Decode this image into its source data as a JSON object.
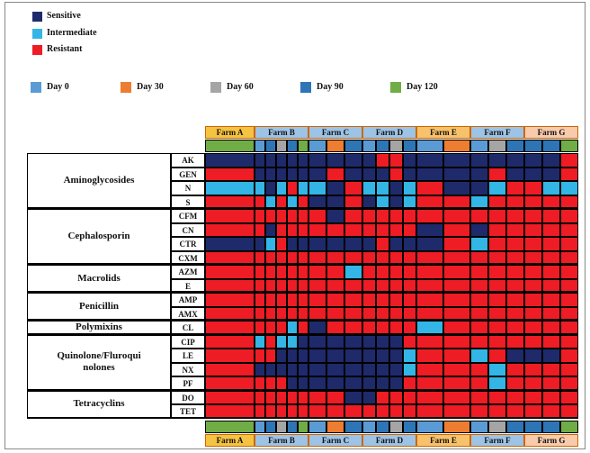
{
  "statuses": [
    {
      "label": "Sensitive",
      "color": "#1f2a6b"
    },
    {
      "label": "Intermediate",
      "color": "#33b5e5"
    },
    {
      "label": "Resistant",
      "color": "#ee1c24"
    }
  ],
  "days": [
    {
      "label": "Day 0",
      "color": "#5b9bd5"
    },
    {
      "label": "Day 30",
      "color": "#ed7d31"
    },
    {
      "label": "Day 60",
      "color": "#a5a5a5"
    },
    {
      "label": "Day 90",
      "color": "#2e75b6"
    },
    {
      "label": "Day 120",
      "color": "#70ad47"
    }
  ],
  "farms": [
    {
      "name": "Farm A",
      "color": "#f5c342",
      "days": [
        4
      ]
    },
    {
      "name": "Farm B",
      "color": "#9dc3e6",
      "days": [
        0,
        3,
        2,
        3,
        4
      ]
    },
    {
      "name": "Farm C",
      "color": "#9dc3e6",
      "days": [
        0,
        1,
        3
      ]
    },
    {
      "name": "Farm D",
      "color": "#9dc3e6",
      "days": [
        0,
        3,
        2,
        3
      ]
    },
    {
      "name": "Farm E",
      "color": "#f7c26b",
      "days": [
        0,
        1
      ]
    },
    {
      "name": "Farm F",
      "color": "#9dc3e6",
      "days": [
        0,
        2,
        3
      ]
    },
    {
      "name": "Farm G",
      "color": "#f8cbad",
      "days": [
        3,
        3,
        4
      ]
    }
  ],
  "groups": [
    {
      "name": "Aminoglycosides",
      "drugs": [
        {
          "name": "AK",
          "cells": [
            0,
            0,
            0,
            0,
            0,
            0,
            0,
            0,
            0,
            0,
            2,
            2,
            0,
            0,
            0,
            0,
            0,
            0,
            0,
            0,
            2
          ]
        },
        {
          "name": "GEN",
          "cells": [
            2,
            0,
            0,
            0,
            0,
            0,
            0,
            2,
            0,
            0,
            0,
            2,
            0,
            0,
            0,
            0,
            2,
            0,
            0,
            0,
            2
          ]
        },
        {
          "name": "N",
          "cells": [
            1,
            1,
            0,
            1,
            2,
            1,
            1,
            0,
            2,
            1,
            1,
            0,
            1,
            2,
            0,
            0,
            1,
            2,
            2,
            1,
            1
          ]
        },
        {
          "name": "S",
          "cells": [
            2,
            2,
            1,
            2,
            1,
            2,
            0,
            0,
            2,
            0,
            1,
            0,
            1,
            2,
            2,
            1,
            2,
            2,
            2,
            2,
            2
          ]
        }
      ]
    },
    {
      "name": "Cephalosporin",
      "drugs": [
        {
          "name": "CFM",
          "cells": [
            2,
            2,
            2,
            2,
            2,
            2,
            2,
            0,
            2,
            2,
            2,
            2,
            2,
            2,
            2,
            2,
            2,
            2,
            2,
            2,
            2
          ]
        },
        {
          "name": "CN",
          "cells": [
            2,
            2,
            0,
            2,
            2,
            2,
            2,
            2,
            2,
            2,
            2,
            2,
            2,
            0,
            2,
            0,
            2,
            2,
            2,
            2,
            2
          ]
        },
        {
          "name": "CTR",
          "cells": [
            0,
            0,
            1,
            2,
            0,
            0,
            0,
            0,
            0,
            0,
            2,
            0,
            0,
            0,
            2,
            1,
            2,
            2,
            2,
            2,
            2
          ]
        },
        {
          "name": "CXM",
          "cells": [
            2,
            2,
            2,
            2,
            2,
            2,
            2,
            2,
            2,
            2,
            2,
            2,
            2,
            2,
            2,
            2,
            2,
            2,
            2,
            2,
            2
          ]
        }
      ]
    },
    {
      "name": "Macrolids",
      "drugs": [
        {
          "name": "AZM",
          "cells": [
            2,
            2,
            2,
            2,
            2,
            2,
            2,
            2,
            1,
            2,
            2,
            2,
            2,
            2,
            2,
            2,
            2,
            2,
            2,
            2,
            2
          ]
        },
        {
          "name": "E",
          "cells": [
            2,
            2,
            2,
            2,
            2,
            2,
            2,
            2,
            2,
            2,
            2,
            2,
            2,
            2,
            2,
            2,
            2,
            2,
            2,
            2,
            2
          ]
        }
      ]
    },
    {
      "name": "Penicillin",
      "drugs": [
        {
          "name": "AMP",
          "cells": [
            2,
            2,
            2,
            2,
            2,
            2,
            2,
            2,
            2,
            2,
            2,
            2,
            2,
            2,
            2,
            2,
            2,
            2,
            2,
            2,
            2
          ]
        },
        {
          "name": "AMX",
          "cells": [
            2,
            2,
            2,
            2,
            2,
            2,
            2,
            2,
            2,
            2,
            2,
            2,
            2,
            2,
            2,
            2,
            2,
            2,
            2,
            2,
            2
          ]
        }
      ]
    },
    {
      "name": "Polymixins",
      "drugs": [
        {
          "name": "CL",
          "cells": [
            2,
            2,
            2,
            2,
            1,
            2,
            0,
            2,
            2,
            2,
            2,
            2,
            2,
            1,
            2,
            2,
            2,
            2,
            2,
            2,
            2
          ]
        }
      ]
    },
    {
      "name": "Quinolone/Fluroqui\nnolones",
      "drugs": [
        {
          "name": "CIP",
          "cells": [
            2,
            1,
            2,
            1,
            1,
            0,
            0,
            0,
            0,
            0,
            0,
            0,
            2,
            2,
            2,
            2,
            2,
            2,
            2,
            2,
            2
          ]
        },
        {
          "name": "LE",
          "cells": [
            2,
            2,
            2,
            0,
            0,
            0,
            0,
            0,
            0,
            0,
            0,
            0,
            1,
            2,
            2,
            1,
            2,
            0,
            0,
            0,
            2
          ]
        },
        {
          "name": "NX",
          "cells": [
            2,
            0,
            0,
            0,
            0,
            0,
            0,
            0,
            0,
            0,
            0,
            0,
            1,
            2,
            2,
            2,
            1,
            2,
            2,
            2,
            2
          ]
        },
        {
          "name": "PF",
          "cells": [
            2,
            2,
            2,
            2,
            0,
            0,
            0,
            0,
            0,
            0,
            0,
            0,
            2,
            2,
            2,
            2,
            1,
            2,
            2,
            2,
            2
          ]
        }
      ]
    },
    {
      "name": "Tetracyclins",
      "drugs": [
        {
          "name": "DO",
          "cells": [
            2,
            2,
            2,
            2,
            2,
            2,
            2,
            2,
            0,
            0,
            2,
            2,
            2,
            2,
            2,
            2,
            2,
            2,
            2,
            2,
            2
          ]
        },
        {
          "name": "TET",
          "cells": [
            2,
            2,
            2,
            2,
            2,
            2,
            2,
            2,
            2,
            2,
            2,
            2,
            2,
            2,
            2,
            2,
            2,
            2,
            2,
            2,
            2
          ]
        }
      ]
    }
  ]
}
